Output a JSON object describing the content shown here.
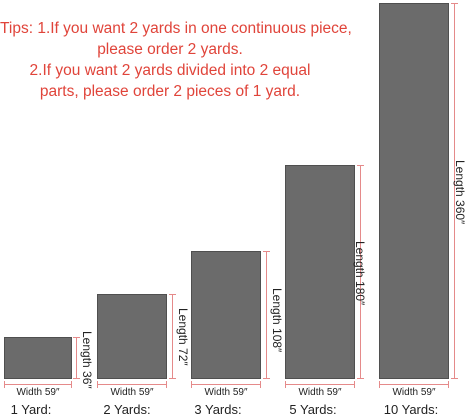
{
  "tips": {
    "line1": "Tips: 1.If you want 2 yards in one continuous piece,",
    "line2": "please order 2 yards.",
    "line3": "2.If you want 2 yards divided into 2 equal",
    "line4": "parts, please order 2 pieces of 1 yard."
  },
  "pieces": [
    {
      "width_label": "Width 59″",
      "length_label": "Length 36″",
      "yard_label": "1 Yard:"
    },
    {
      "width_label": "Width 59″",
      "length_label": "Length 72″",
      "yard_label": "2 Yards:"
    },
    {
      "width_label": "Width 59″",
      "length_label": "Length 108″",
      "yard_label": "3 Yards:"
    },
    {
      "width_label": "Width 59″",
      "length_label": "Length 180″",
      "yard_label": "5 Yards:"
    },
    {
      "width_label": "Width 59″",
      "length_label": "Length 360″",
      "yard_label": "10 Yards:"
    }
  ],
  "colors": {
    "tips_text": "#e0443a",
    "fabric": "#6b6b6b",
    "dimension_line": "#e58a8a"
  }
}
